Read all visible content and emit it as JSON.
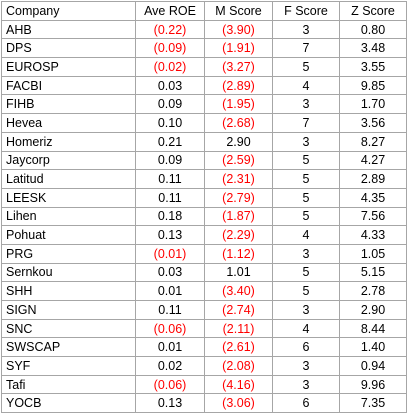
{
  "headers": [
    "Company",
    "Ave ROE",
    "M Score",
    "F Score",
    "Z Score"
  ],
  "neg_color": "#ff0000",
  "rows": [
    {
      "company": "AHB",
      "roe": "(0.22)",
      "roe_neg": true,
      "m": "(3.90)",
      "m_neg": true,
      "f": "3",
      "z": "0.80"
    },
    {
      "company": "DPS",
      "roe": "(0.09)",
      "roe_neg": true,
      "m": "(1.91)",
      "m_neg": true,
      "f": "7",
      "z": "3.48"
    },
    {
      "company": "EUROSP",
      "roe": "(0.02)",
      "roe_neg": true,
      "m": "(3.27)",
      "m_neg": true,
      "f": "5",
      "z": "3.55"
    },
    {
      "company": "FACBI",
      "roe": "0.03",
      "roe_neg": false,
      "m": "(2.89)",
      "m_neg": true,
      "f": "4",
      "z": "9.85"
    },
    {
      "company": "FIHB",
      "roe": "0.09",
      "roe_neg": false,
      "m": "(1.95)",
      "m_neg": true,
      "f": "3",
      "z": "1.70"
    },
    {
      "company": "Hevea",
      "roe": "0.10",
      "roe_neg": false,
      "m": "(2.68)",
      "m_neg": true,
      "f": "7",
      "z": "3.56"
    },
    {
      "company": "Homeriz",
      "roe": "0.21",
      "roe_neg": false,
      "m": "2.90",
      "m_neg": false,
      "f": "3",
      "z": "8.27"
    },
    {
      "company": "Jaycorp",
      "roe": "0.09",
      "roe_neg": false,
      "m": "(2.59)",
      "m_neg": true,
      "f": "5",
      "z": "4.27"
    },
    {
      "company": "Latitud",
      "roe": "0.11",
      "roe_neg": false,
      "m": "(2.31)",
      "m_neg": true,
      "f": "5",
      "z": "2.89"
    },
    {
      "company": "LEESK",
      "roe": "0.11",
      "roe_neg": false,
      "m": "(2.79)",
      "m_neg": true,
      "f": "5",
      "z": "4.35"
    },
    {
      "company": "Lihen",
      "roe": "0.18",
      "roe_neg": false,
      "m": "(1.87)",
      "m_neg": true,
      "f": "5",
      "z": "7.56"
    },
    {
      "company": "Pohuat",
      "roe": "0.13",
      "roe_neg": false,
      "m": "(2.29)",
      "m_neg": true,
      "f": "4",
      "z": "4.33"
    },
    {
      "company": "PRG",
      "roe": "(0.01)",
      "roe_neg": true,
      "m": "(1.12)",
      "m_neg": true,
      "f": "3",
      "z": "1.05"
    },
    {
      "company": "Sernkou",
      "roe": "0.03",
      "roe_neg": false,
      "m": "1.01",
      "m_neg": false,
      "f": "5",
      "z": "5.15"
    },
    {
      "company": "SHH",
      "roe": "0.01",
      "roe_neg": false,
      "m": "(3.40)",
      "m_neg": true,
      "f": "5",
      "z": "2.78"
    },
    {
      "company": "SIGN",
      "roe": "0.11",
      "roe_neg": false,
      "m": "(2.74)",
      "m_neg": true,
      "f": "3",
      "z": "2.90"
    },
    {
      "company": "SNC",
      "roe": "(0.06)",
      "roe_neg": true,
      "m": "(2.11)",
      "m_neg": true,
      "f": "4",
      "z": "8.44"
    },
    {
      "company": "SWSCAP",
      "roe": "0.01",
      "roe_neg": false,
      "m": "(2.61)",
      "m_neg": true,
      "f": "6",
      "z": "1.40"
    },
    {
      "company": "SYF",
      "roe": "0.02",
      "roe_neg": false,
      "m": "(2.08)",
      "m_neg": true,
      "f": "3",
      "z": "0.94"
    },
    {
      "company": "Tafi",
      "roe": "(0.06)",
      "roe_neg": true,
      "m": "(4.16)",
      "m_neg": true,
      "f": "3",
      "z": "9.96"
    },
    {
      "company": "YOCB",
      "roe": "0.13",
      "roe_neg": false,
      "m": "(3.06)",
      "m_neg": true,
      "f": "6",
      "z": "7.35"
    }
  ]
}
